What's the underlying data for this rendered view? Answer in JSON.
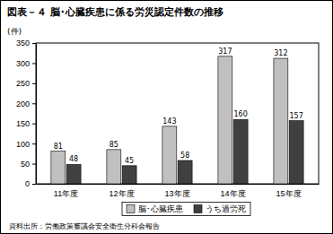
{
  "chart_data": {
    "type": "bar",
    "title": "図表－４ 脳･心臓疾患に係る労災認定件数の推移",
    "y_label": "(件)",
    "categories": [
      "11年度",
      "12年度",
      "13年度",
      "14年度",
      "15年度"
    ],
    "series": [
      {
        "name": "脳･心臓疾患",
        "color": "#c0c0c0",
        "values": [
          81,
          85,
          143,
          317,
          312
        ]
      },
      {
        "name": "うち過労死",
        "color": "#404040",
        "values": [
          48,
          45,
          58,
          160,
          157
        ]
      }
    ],
    "ylim": [
      0,
      350
    ],
    "yticks": [
      0,
      50,
      100,
      150,
      200,
      250,
      300,
      350
    ],
    "grid": false,
    "data_labels": true,
    "legend": "bottom",
    "source": "資料出所：労働政策審議会安全衛生分科会報告"
  }
}
